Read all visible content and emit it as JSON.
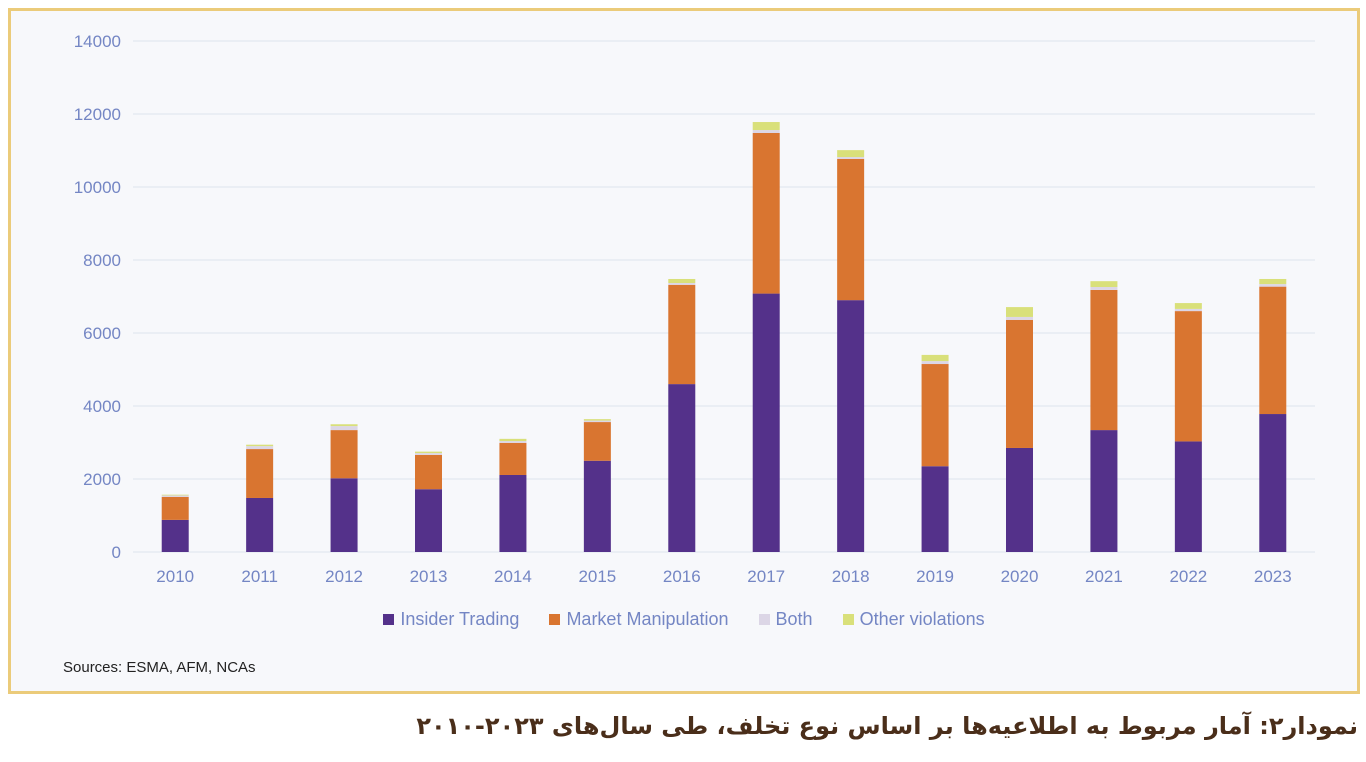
{
  "chart_data": {
    "type": "bar",
    "stacked": true,
    "title": "",
    "xlabel": "",
    "ylabel": "",
    "ylim": [
      0,
      14000
    ],
    "yticks": [
      0,
      2000,
      4000,
      6000,
      8000,
      10000,
      12000,
      14000
    ],
    "grid": true,
    "legend_position": "bottom",
    "categories": [
      "2010",
      "2011",
      "2012",
      "2013",
      "2014",
      "2015",
      "2016",
      "2017",
      "2018",
      "2019",
      "2020",
      "2021",
      "2022",
      "2023"
    ],
    "series": [
      {
        "name": "Insider Trading",
        "color": "#54318a",
        "values": [
          880,
          1480,
          2020,
          1720,
          2110,
          2500,
          4600,
          7080,
          6900,
          2350,
          2850,
          3340,
          3030,
          3780
        ]
      },
      {
        "name": "Market Manipulation",
        "color": "#d97530",
        "values": [
          630,
          1340,
          1320,
          940,
          880,
          1060,
          2720,
          4400,
          3870,
          2800,
          3510,
          3840,
          3570,
          3490
        ]
      },
      {
        "name": "Both",
        "color": "#dcd6e6",
        "values": [
          40,
          80,
          110,
          50,
          50,
          40,
          50,
          80,
          50,
          80,
          80,
          80,
          60,
          70
        ]
      },
      {
        "name": "Other violations",
        "color": "#d9e07a",
        "values": [
          20,
          40,
          50,
          40,
          60,
          40,
          110,
          220,
          190,
          170,
          270,
          160,
          160,
          140
        ]
      }
    ]
  },
  "source": "Sources: ESMA, AFM, NCAs",
  "caption": "نمودار۲: آمار مربوط به اطلاعیه‌ها بر اساس نوع تخلف، طی سال‌های ۲۰۲۳-۲۰۱۰"
}
